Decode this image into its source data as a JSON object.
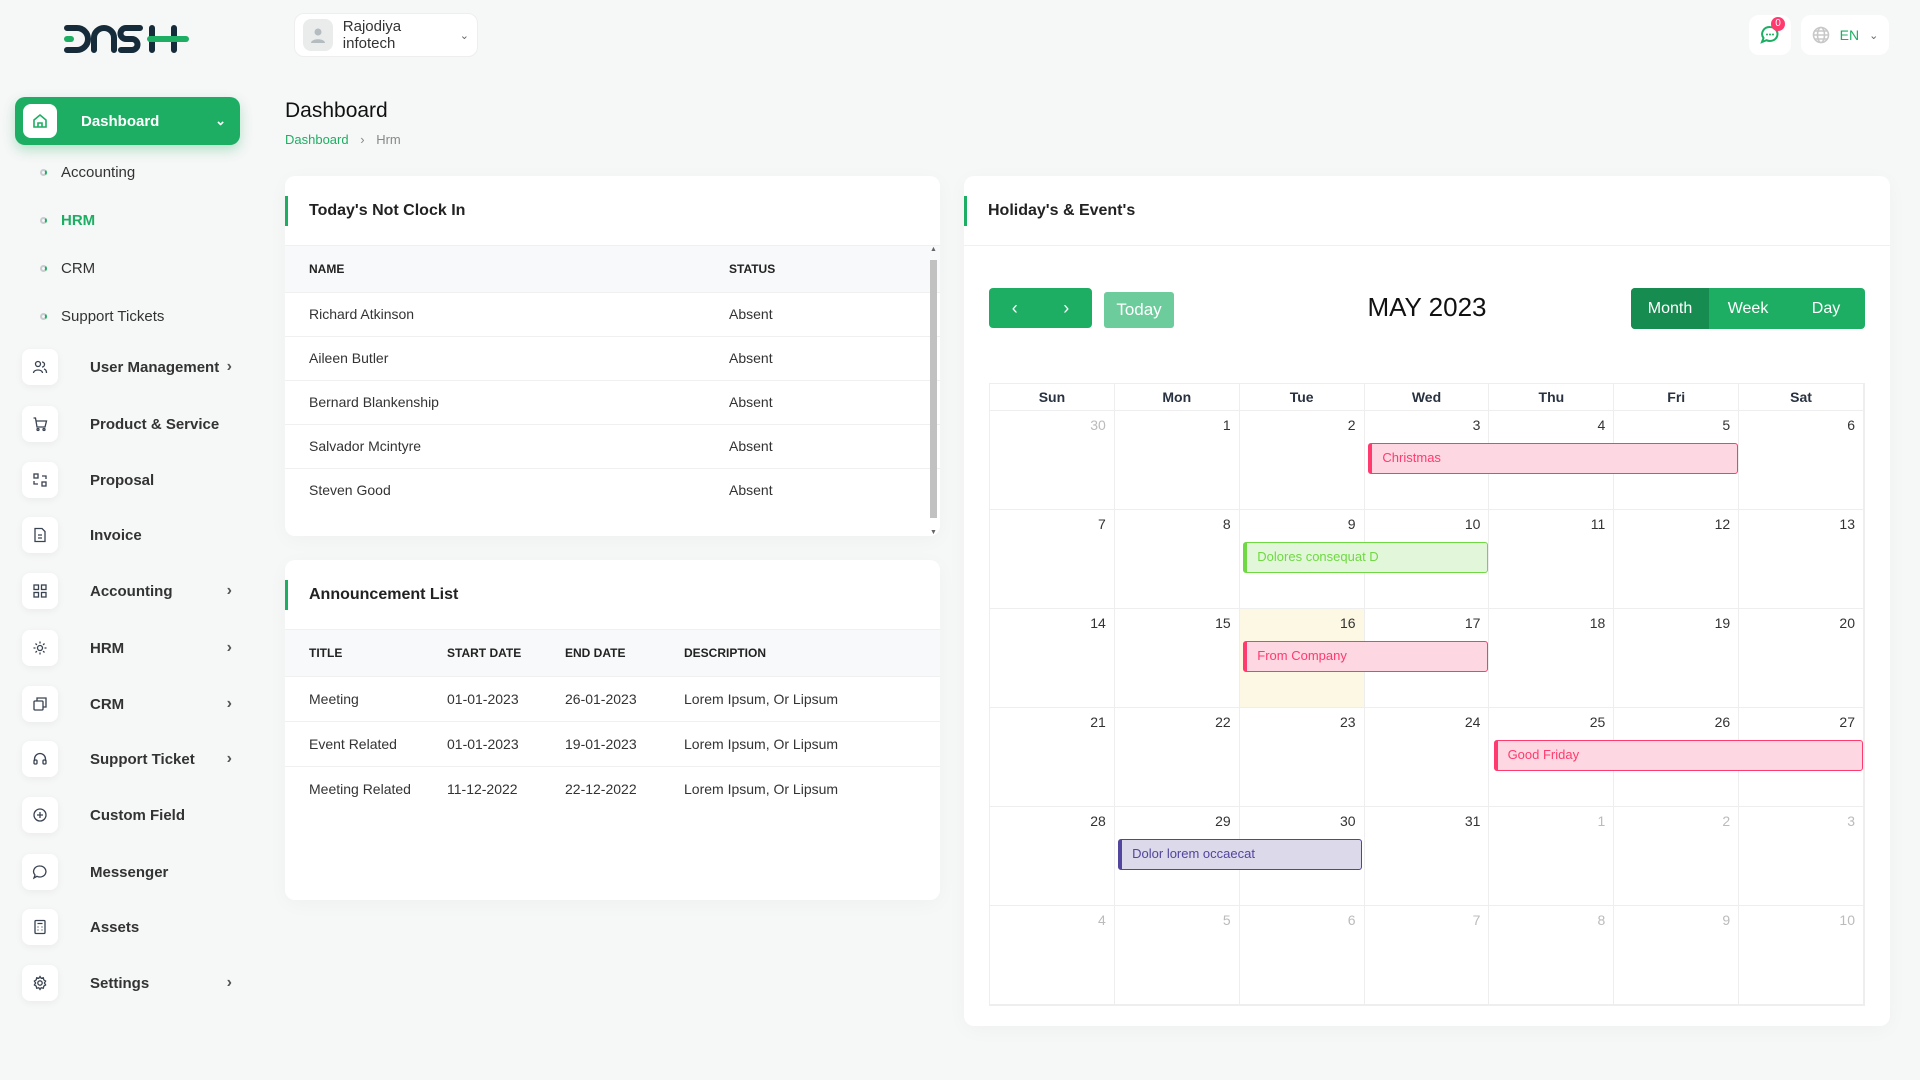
{
  "brand": {
    "logo_text": "DASH"
  },
  "header": {
    "company": "Rajodiya infotech",
    "notifications": "0",
    "language": "EN"
  },
  "sidebar": {
    "active": {
      "label": "Dashboard"
    },
    "sub_items": [
      {
        "label": "Accounting"
      },
      {
        "label": "HRM",
        "active": true
      },
      {
        "label": "CRM"
      },
      {
        "label": "Support Tickets"
      }
    ],
    "items": [
      {
        "label": "User Management",
        "icon": "users-icon",
        "chevron": true
      },
      {
        "label": "Product & Service",
        "icon": "cart-icon",
        "chevron": false
      },
      {
        "label": "Proposal",
        "icon": "proposal-icon",
        "chevron": false
      },
      {
        "label": "Invoice",
        "icon": "invoice-icon",
        "chevron": false
      },
      {
        "label": "Accounting",
        "icon": "grid-icon",
        "chevron": true
      },
      {
        "label": "HRM",
        "icon": "hrm-icon",
        "chevron": true
      },
      {
        "label": "CRM",
        "icon": "crm-icon",
        "chevron": true
      },
      {
        "label": "Support Ticket",
        "icon": "headset-icon",
        "chevron": true
      },
      {
        "label": "Custom Field",
        "icon": "plus-circle-icon",
        "chevron": false
      },
      {
        "label": "Messenger",
        "icon": "chat-icon",
        "chevron": false
      },
      {
        "label": "Assets",
        "icon": "calculator-icon",
        "chevron": false
      },
      {
        "label": "Settings",
        "icon": "gear-icon",
        "chevron": true
      }
    ]
  },
  "page": {
    "title": "Dashboard",
    "breadcrumb": [
      "Dashboard",
      "Hrm"
    ]
  },
  "not_clock_in": {
    "title": "Today's Not Clock In",
    "columns": [
      "NAME",
      "STATUS"
    ],
    "rows": [
      [
        "Richard Atkinson",
        "Absent"
      ],
      [
        "Aileen Butler",
        "Absent"
      ],
      [
        "Bernard Blankenship",
        "Absent"
      ],
      [
        "Salvador Mcintyre",
        "Absent"
      ],
      [
        "Steven Good",
        "Absent"
      ]
    ]
  },
  "announcements": {
    "title": "Announcement List",
    "columns": [
      "TITLE",
      "START DATE",
      "END DATE",
      "DESCRIPTION"
    ],
    "rows": [
      [
        "Meeting",
        "01-01-2023",
        "26-01-2023",
        "Lorem Ipsum, Or Lipsum"
      ],
      [
        "Event Related",
        "01-01-2023",
        "19-01-2023",
        "Lorem Ipsum, Or Lipsum"
      ],
      [
        "Meeting Related",
        "11-12-2022",
        "22-12-2022",
        "Lorem Ipsum, Or Lipsum"
      ]
    ]
  },
  "calendar": {
    "title": "Holiday's & Event's",
    "month_label": "MAY 2023",
    "today_label": "Today",
    "views": [
      "Month",
      "Week",
      "Day"
    ],
    "active_view": "Month",
    "weekdays": [
      "Sun",
      "Mon",
      "Tue",
      "Wed",
      "Thu",
      "Fri",
      "Sat"
    ],
    "weeks": [
      [
        30,
        1,
        2,
        3,
        4,
        5,
        6
      ],
      [
        7,
        8,
        9,
        10,
        11,
        12,
        13
      ],
      [
        14,
        15,
        16,
        17,
        18,
        19,
        20
      ],
      [
        21,
        22,
        23,
        24,
        25,
        26,
        27
      ],
      [
        28,
        29,
        30,
        31,
        1,
        2,
        3
      ],
      [
        4,
        5,
        6,
        7,
        8,
        9,
        10
      ]
    ],
    "today": 16,
    "events": [
      {
        "title": "Christmas",
        "week": 0,
        "start_day": 3,
        "end_day": 5,
        "color": "#ff3a6e",
        "bg": "#fdd7e1"
      },
      {
        "title": "Dolores consequat D",
        "week": 1,
        "start_day": 9,
        "end_day": 10,
        "color": "#6fd943",
        "bg": "#e2f7d9"
      },
      {
        "title": "From Company",
        "week": 2,
        "start_day": 16,
        "end_day": 17,
        "color": "#ff3a6e",
        "bg": "#fdd7e1"
      },
      {
        "title": "Good Friday",
        "week": 3,
        "start_day": 25,
        "end_day": 27,
        "color": "#ff3a6e",
        "bg": "#fdd7e1"
      },
      {
        "title": "Dolor lorem occaecat",
        "week": 4,
        "start_day": 29,
        "end_day": 30,
        "color": "#51459d",
        "bg": "#dcd9eb"
      }
    ]
  },
  "colors": {
    "accent": "#1eae63",
    "danger": "#ff3a6e"
  }
}
